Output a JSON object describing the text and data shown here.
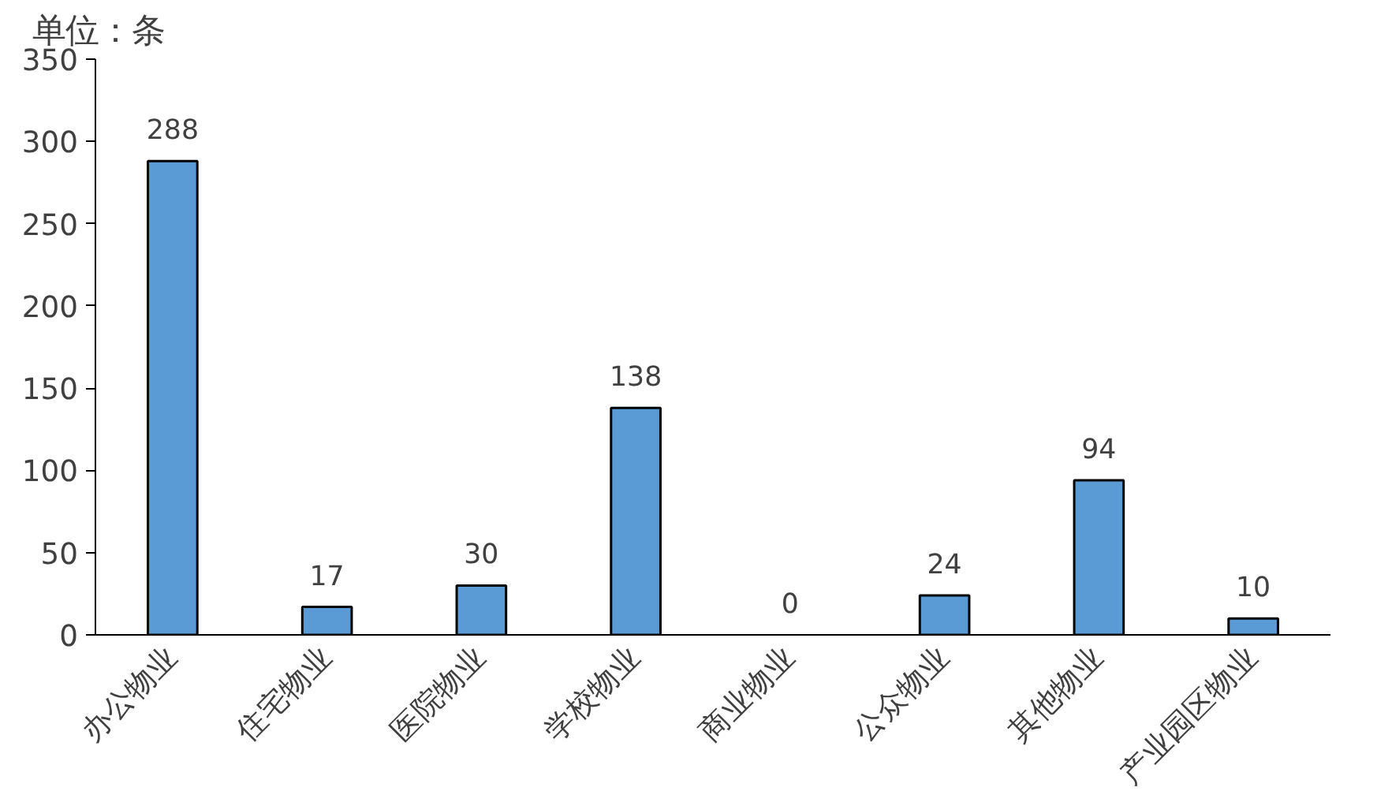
{
  "chart_data": {
    "type": "bar",
    "ylabel": "单位：条",
    "categories": [
      "办公物业",
      "住宅物业",
      "医院物业",
      "学校物业",
      "商业物业",
      "公众物业",
      "其他物业",
      "产业园区物业"
    ],
    "values": [
      288,
      17,
      30,
      138,
      0,
      24,
      94,
      10
    ],
    "color": "#5b9bd5",
    "ylim": [
      0,
      350
    ],
    "yticks": [
      0,
      50,
      100,
      150,
      200,
      250,
      300,
      350
    ],
    "data_labels": true,
    "grid": false
  }
}
